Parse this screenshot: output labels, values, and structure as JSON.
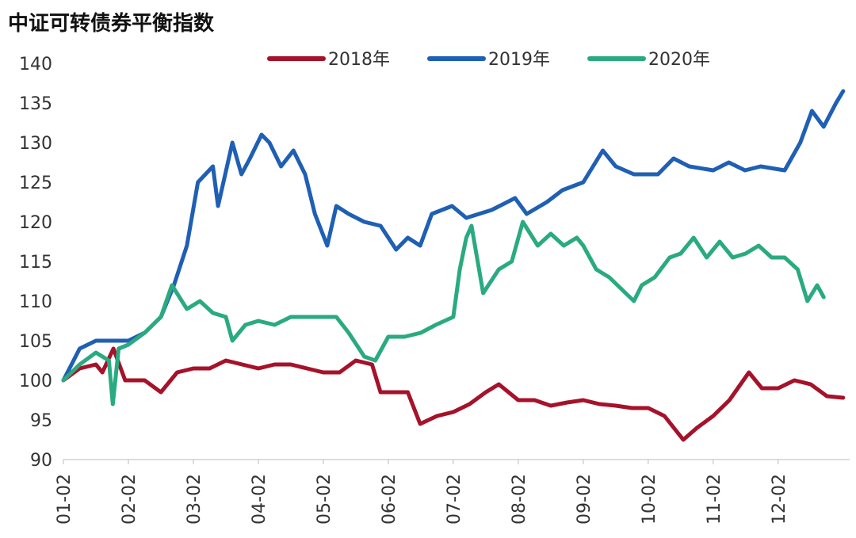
{
  "chart_data": {
    "type": "line",
    "title": "中证可转债券平衡指数",
    "xlim": [
      0,
      12.1
    ],
    "xticks": [
      {
        "value": 0,
        "label": "01-02"
      },
      {
        "value": 1,
        "label": "02-02"
      },
      {
        "value": 2,
        "label": "03-02"
      },
      {
        "value": 3,
        "label": "04-02"
      },
      {
        "value": 4,
        "label": "05-02"
      },
      {
        "value": 5,
        "label": "06-02"
      },
      {
        "value": 6,
        "label": "07-02"
      },
      {
        "value": 7,
        "label": "08-02"
      },
      {
        "value": 8,
        "label": "09-02"
      },
      {
        "value": 9,
        "label": "10-02"
      },
      {
        "value": 10,
        "label": "11-02"
      },
      {
        "value": 11,
        "label": "12-02"
      }
    ],
    "ylim": [
      90,
      140
    ],
    "yticks": [
      90,
      95,
      100,
      105,
      110,
      115,
      120,
      125,
      130,
      135,
      140
    ],
    "legend": "top",
    "series": [
      {
        "name": "2018年",
        "color": "#a5122a",
        "x": [
          0,
          0.25,
          0.5,
          0.6,
          0.77,
          0.95,
          1.25,
          1.5,
          1.75,
          2.0,
          2.25,
          2.5,
          2.75,
          3.0,
          3.25,
          3.5,
          3.75,
          4.0,
          4.25,
          4.5,
          4.75,
          4.88,
          5.1,
          5.3,
          5.49,
          5.75,
          6.0,
          6.25,
          6.5,
          6.7,
          7.0,
          7.25,
          7.5,
          7.75,
          8.0,
          8.25,
          8.5,
          8.75,
          9.0,
          9.25,
          9.54,
          9.75,
          10.0,
          10.25,
          10.55,
          10.75,
          11.0,
          11.25,
          11.5,
          11.75,
          12.0
        ],
        "values": [
          100,
          101.5,
          102,
          101,
          104,
          100,
          100,
          98.5,
          101,
          101.5,
          101.5,
          102.5,
          102,
          101.5,
          102,
          102,
          101.5,
          101,
          101,
          102.5,
          102,
          98.5,
          98.5,
          98.5,
          94.5,
          95.5,
          96,
          97,
          98.5,
          99.5,
          97.5,
          97.5,
          96.8,
          97.2,
          97.5,
          97,
          96.8,
          96.5,
          96.5,
          95.5,
          92.5,
          94,
          95.5,
          97.5,
          101,
          99,
          99,
          100,
          99.5,
          98,
          97.8
        ]
      },
      {
        "name": "2019年",
        "color": "#1f5fb4",
        "x": [
          0,
          0.25,
          0.5,
          0.75,
          1.0,
          1.25,
          1.5,
          1.7,
          1.9,
          2.07,
          2.3,
          2.38,
          2.6,
          2.74,
          2.87,
          3.05,
          3.17,
          3.35,
          3.54,
          3.72,
          3.87,
          4.06,
          4.2,
          4.39,
          4.63,
          4.88,
          5.12,
          5.3,
          5.49,
          5.67,
          5.98,
          6.2,
          6.59,
          6.95,
          7.13,
          7.44,
          7.68,
          8.0,
          8.3,
          8.5,
          8.78,
          9.15,
          9.39,
          9.63,
          10.0,
          10.24,
          10.49,
          10.73,
          11.1,
          11.34,
          11.52,
          11.7,
          11.89,
          12.0
        ],
        "values": [
          100,
          104,
          105,
          105,
          105,
          106,
          108,
          112,
          117,
          125,
          127,
          122,
          130,
          126,
          128,
          131,
          130,
          127,
          129,
          126,
          121,
          117,
          122,
          121,
          120,
          119.5,
          116.5,
          118,
          117,
          121,
          122,
          120.5,
          121.5,
          123,
          121,
          122.5,
          124,
          125,
          129,
          127,
          126,
          126,
          128,
          127,
          126.5,
          127.5,
          126.5,
          127,
          126.5,
          130,
          134,
          132,
          135,
          136.5
        ]
      },
      {
        "name": "2020年",
        "color": "#2aaa80",
        "x": [
          0,
          0.25,
          0.5,
          0.7,
          0.76,
          0.85,
          1.0,
          1.25,
          1.5,
          1.67,
          1.9,
          2.1,
          2.3,
          2.5,
          2.6,
          2.8,
          3.0,
          3.25,
          3.5,
          3.75,
          4.0,
          4.2,
          4.39,
          4.63,
          4.8,
          5.0,
          5.25,
          5.5,
          5.73,
          6.0,
          6.1,
          6.2,
          6.28,
          6.46,
          6.7,
          6.9,
          7.07,
          7.3,
          7.5,
          7.7,
          7.9,
          8.0,
          8.2,
          8.4,
          8.78,
          8.9,
          9.1,
          9.33,
          9.5,
          9.7,
          9.9,
          10.1,
          10.3,
          10.5,
          10.7,
          10.9,
          11.1,
          11.3,
          11.45,
          11.6,
          11.7
        ],
        "values": [
          100,
          102,
          103.5,
          102.5,
          97,
          104,
          104.5,
          106,
          108,
          112,
          109,
          110,
          108.5,
          108,
          105,
          107,
          107.5,
          107,
          108,
          108,
          108,
          108,
          106,
          103,
          102.5,
          105.5,
          105.5,
          106,
          107,
          108,
          114,
          118,
          119.5,
          111,
          114,
          115,
          120,
          117,
          118.5,
          117,
          118,
          117,
          114,
          113,
          110,
          112,
          113,
          115.5,
          116,
          118,
          115.5,
          117.5,
          115.5,
          116,
          117,
          115.5,
          115.5,
          114,
          110,
          112,
          110.5
        ]
      }
    ]
  }
}
